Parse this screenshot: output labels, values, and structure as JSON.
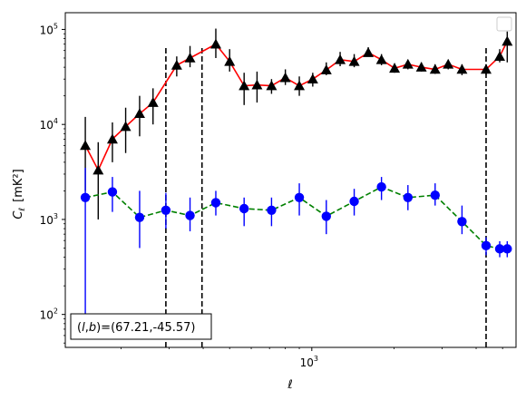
{
  "chart_data": {
    "type": "line",
    "xlabel": "ℓ",
    "ylabel": "C",
    "ylabel_sub": "ℓ",
    "ylabel_unit": "[mK²]",
    "x_scale": "log",
    "y_scale": "log",
    "xlim": [
      125,
      5600
    ],
    "ylim": [
      45,
      150000
    ],
    "x_ticks": [
      {
        "value": 1000,
        "base": "10",
        "exp": "3"
      }
    ],
    "y_ticks": [
      {
        "value": 100,
        "base": "10",
        "exp": "2"
      },
      {
        "value": 1000,
        "base": "10",
        "exp": "3"
      },
      {
        "value": 10000,
        "base": "10",
        "exp": "4"
      },
      {
        "value": 100000,
        "base": "10",
        "exp": "5"
      }
    ],
    "legend": {
      "placement": "top-right",
      "entries": []
    },
    "vlines": [
      292,
      396,
      4350
    ],
    "vline_ymax": 68000,
    "annotation": {
      "text_prefix": "(",
      "l": "l",
      "comma": ",",
      "b": "b",
      "text_suffix": ")=(67.21,-45.57)",
      "placement": "bottom-left"
    },
    "series": [
      {
        "marker": "triangle",
        "line_color": "#ff0000",
        "marker_color": "#000000",
        "line_style": "solid",
        "x": [
          148,
          165,
          186,
          208,
          234,
          262,
          320,
          358,
          445,
          500,
          565,
          630,
          712,
          800,
          900,
          1008,
          1130,
          1270,
          1430,
          1610,
          1800,
          2010,
          2250,
          2520,
          2830,
          3160,
          3550,
          4350,
          4880,
          5200
        ],
        "y": [
          6000,
          3300,
          7000,
          9500,
          13000,
          17000,
          42000,
          50000,
          70000,
          46000,
          25500,
          26000,
          25500,
          31000,
          25500,
          30000,
          37500,
          48000,
          46000,
          57000,
          48000,
          39000,
          43000,
          40000,
          38000,
          43000,
          38000,
          38000,
          52000,
          75000
        ],
        "y_low": [
          2000,
          1000,
          4000,
          5000,
          7500,
          10000,
          32000,
          40000,
          50000,
          36000,
          16000,
          17000,
          21000,
          26000,
          20000,
          25000,
          33000,
          41000,
          40000,
          52000,
          42000,
          35000,
          38000,
          36000,
          34000,
          38000,
          33000,
          33000,
          45000,
          45000
        ],
        "y_high": [
          12000,
          6500,
          10500,
          15000,
          20000,
          24000,
          52000,
          67000,
          102000,
          62000,
          35000,
          36000,
          30000,
          38000,
          32000,
          35000,
          45000,
          58000,
          55000,
          65000,
          55000,
          44000,
          48000,
          45000,
          43000,
          48000,
          43000,
          43000,
          62000,
          95000
        ]
      },
      {
        "marker": "circle",
        "line_color": "#008000",
        "marker_color": "#0000ff",
        "line_style": "dashed",
        "x": [
          148,
          186,
          234,
          292,
          358,
          445,
          565,
          712,
          900,
          1130,
          1430,
          1800,
          2250,
          2830,
          3550,
          4350,
          4880,
          5200
        ],
        "y": [
          1700,
          1950,
          1050,
          1250,
          1100,
          1500,
          1300,
          1250,
          1700,
          1080,
          1550,
          2200,
          1700,
          1800,
          950,
          530,
          490,
          490
        ],
        "y_low": [
          80,
          1200,
          500,
          800,
          750,
          1100,
          850,
          850,
          1100,
          700,
          1100,
          1600,
          1250,
          1400,
          700,
          420,
          400,
          400
        ],
        "y_high": [
          3500,
          2800,
          2000,
          1900,
          1700,
          2000,
          1700,
          1700,
          2400,
          1600,
          2100,
          2800,
          2300,
          2400,
          1400,
          650,
          590,
          590
        ]
      }
    ]
  }
}
